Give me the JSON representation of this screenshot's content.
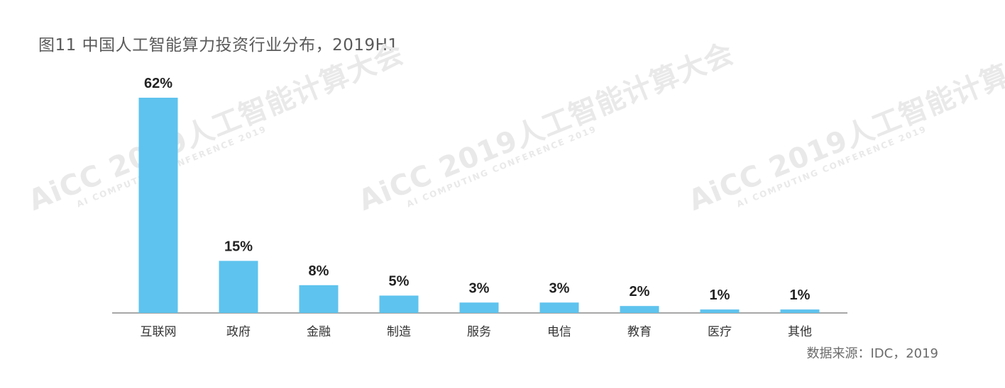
{
  "title": "图11 中国人工智能算力投资行业分布，2019H1",
  "source": "数据来源：IDC，2019",
  "watermark": {
    "line1": "AiCC 2019人工智能计算大会",
    "line2": "AI COMPUTING CONFERENCE 2019"
  },
  "colors": {
    "bar": "#5ec3ee",
    "axis": "#8a8a8a",
    "value_label": "#222222",
    "category_label": "#333333"
  },
  "chart_data": {
    "type": "bar",
    "title": "图11 中国人工智能算力投资行业分布，2019H1",
    "xlabel": "",
    "ylabel": "",
    "categories": [
      "互联网",
      "政府",
      "金融",
      "制造",
      "服务",
      "电信",
      "教育",
      "医疗",
      "其他"
    ],
    "values": [
      62,
      15,
      8,
      5,
      3,
      3,
      2,
      1,
      1
    ],
    "value_labels": [
      "62%",
      "15%",
      "8%",
      "5%",
      "3%",
      "3%",
      "2%",
      "1%",
      "1%"
    ],
    "unit": "%",
    "ylim": [
      0,
      62
    ],
    "grid": false,
    "legend": "none"
  }
}
